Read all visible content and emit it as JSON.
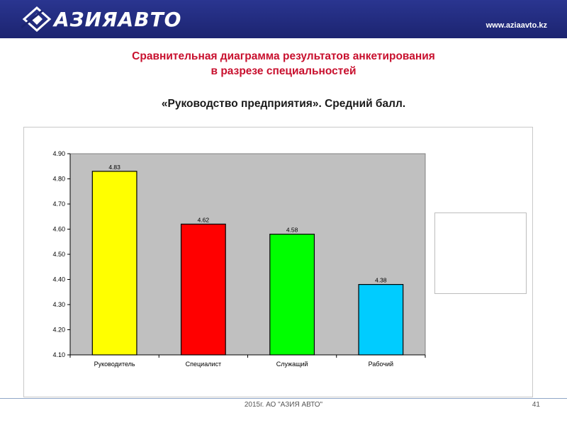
{
  "header": {
    "logo_text": "АЗИЯАВТО",
    "site_url": "www.aziaavto.kz",
    "logo_icon": "aziaavto-logo-icon"
  },
  "slide": {
    "title_line1": "Сравнительная диаграмма результатов анкетирования",
    "title_line2": "в разрезе специальностей",
    "subtitle": "«Руководство предприятия». Средний балл."
  },
  "footer": {
    "text": "2015г. АО \"АЗИЯ АВТО\"",
    "page": "41"
  },
  "colors": {
    "header_bg": "#1c2470",
    "title": "#c8102e",
    "plot_bg": "#c0c0c0"
  },
  "chart_data": {
    "type": "bar",
    "categories": [
      "Руководитель",
      "Специалист",
      "Служащий",
      "Рабочий"
    ],
    "values": [
      4.83,
      4.62,
      4.58,
      4.38
    ],
    "data_labels": [
      "4.83",
      "4.62",
      "4.58",
      "4.38"
    ],
    "bar_colors": [
      "#ffff00",
      "#ff0000",
      "#00ff00",
      "#00ccff"
    ],
    "ylim": [
      4.1,
      4.9
    ],
    "yticks": [
      "4.10",
      "4.20",
      "4.30",
      "4.40",
      "4.50",
      "4.60",
      "4.70",
      "4.80",
      "4.90"
    ],
    "grid": false,
    "legend": "right"
  }
}
